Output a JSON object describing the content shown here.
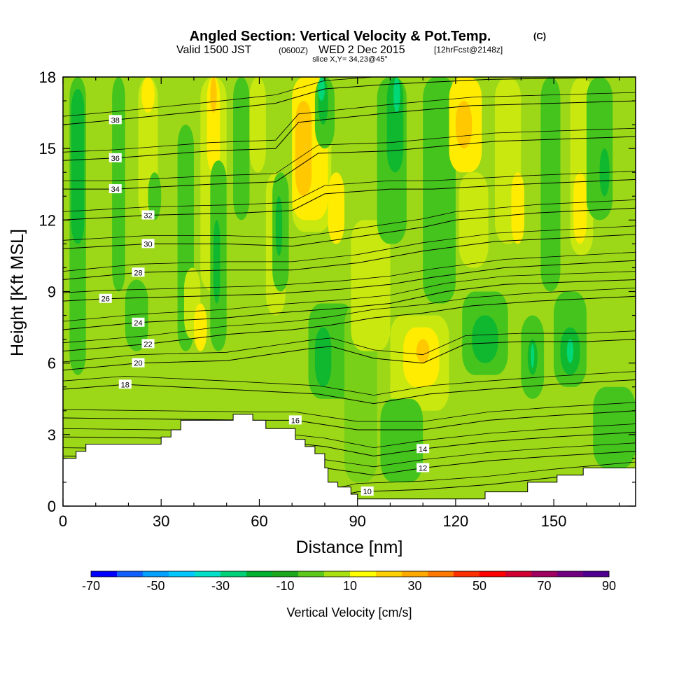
{
  "header": {
    "title": "Angled Section: Vertical Velocity & Pot.Temp.",
    "title_unit": "(C)",
    "valid_line": "Valid 1500 JST",
    "utc_time": "(0600Z)",
    "date": "WED 2 Dec 2015",
    "forecast": "[12hrFcst@2148z]",
    "slice": "slice X,Y= 34,23@45°"
  },
  "chart_data": {
    "type": "heatmap",
    "xlabel": "Distance [nm]",
    "ylabel": "Height [Kft MSL]",
    "xlim": [
      0,
      175
    ],
    "ylim": [
      0,
      18
    ],
    "x_ticks": [
      0,
      30,
      60,
      90,
      120,
      150
    ],
    "y_ticks": [
      0,
      3,
      6,
      9,
      12,
      15,
      18
    ],
    "terrain": [
      [
        0,
        2
      ],
      [
        4,
        2
      ],
      [
        4,
        2.3
      ],
      [
        7,
        2.3
      ],
      [
        7,
        2.6
      ],
      [
        30,
        2.6
      ],
      [
        30,
        2.9
      ],
      [
        33,
        2.9
      ],
      [
        33,
        3.2
      ],
      [
        36,
        3.2
      ],
      [
        36,
        3.6
      ],
      [
        52,
        3.6
      ],
      [
        52,
        3.85
      ],
      [
        58,
        3.85
      ],
      [
        58,
        3.6
      ],
      [
        62,
        3.6
      ],
      [
        62,
        3.25
      ],
      [
        71,
        3.25
      ],
      [
        71,
        2.8
      ],
      [
        74,
        2.8
      ],
      [
        74,
        2.5
      ],
      [
        77,
        2.5
      ],
      [
        77,
        2.2
      ],
      [
        80,
        2.2
      ],
      [
        80,
        1.6
      ],
      [
        81,
        1.6
      ],
      [
        81,
        1.0
      ],
      [
        84,
        1.0
      ],
      [
        84,
        0.8
      ],
      [
        88,
        0.8
      ],
      [
        88,
        0.5
      ],
      [
        90,
        0.5
      ],
      [
        90,
        0.3
      ],
      [
        129,
        0.3
      ],
      [
        129,
        0.6
      ],
      [
        142,
        0.6
      ],
      [
        142,
        1.0
      ],
      [
        151,
        1.0
      ],
      [
        151,
        1.3
      ],
      [
        159,
        1.3
      ],
      [
        159,
        1.6
      ],
      [
        175,
        1.6
      ]
    ],
    "velocity_cells": [
      {
        "x0": 2,
        "x1": 7,
        "y0": 5.5,
        "y1": 18,
        "w": -10
      },
      {
        "x0": 2.5,
        "x1": 6.5,
        "y0": 11,
        "y1": 17.5,
        "w": -20
      },
      {
        "x0": 15,
        "x1": 19,
        "y0": 9,
        "y1": 18,
        "w": -10
      },
      {
        "x0": 19,
        "x1": 26,
        "y0": 6.5,
        "y1": 9.5,
        "w": -10
      },
      {
        "x0": 23,
        "x1": 29,
        "y0": 12,
        "y1": 18,
        "w": 10
      },
      {
        "x0": 24,
        "x1": 28,
        "y0": 16.5,
        "y1": 18,
        "w": 20
      },
      {
        "x0": 26,
        "x1": 30,
        "y0": 12,
        "y1": 14,
        "w": -10
      },
      {
        "x0": 35,
        "x1": 40,
        "y0": 6.5,
        "y1": 16,
        "w": -10
      },
      {
        "x0": 37,
        "x1": 42,
        "y0": 7,
        "y1": 10,
        "w": 10
      },
      {
        "x0": 40,
        "x1": 44,
        "y0": 6.5,
        "y1": 8.5,
        "w": 20
      },
      {
        "x0": 42,
        "x1": 50,
        "y0": 9,
        "y1": 18,
        "w": 10
      },
      {
        "x0": 44,
        "x1": 48,
        "y0": 14,
        "y1": 18,
        "w": 20
      },
      {
        "x0": 45,
        "x1": 47,
        "y0": 16.5,
        "y1": 18,
        "w": 30
      },
      {
        "x0": 45,
        "x1": 50,
        "y0": 6.5,
        "y1": 14.5,
        "w": -10
      },
      {
        "x0": 46,
        "x1": 48,
        "y0": 8.5,
        "y1": 12,
        "w": -20
      },
      {
        "x0": 52,
        "x1": 57,
        "y0": 12,
        "y1": 18,
        "w": -10
      },
      {
        "x0": 57,
        "x1": 62,
        "y0": 14,
        "y1": 18,
        "w": 10
      },
      {
        "x0": 62,
        "x1": 68,
        "y0": 8,
        "y1": 14,
        "w": 10
      },
      {
        "x0": 64,
        "x1": 69,
        "y0": 9,
        "y1": 14,
        "w": -10
      },
      {
        "x0": 65,
        "x1": 67,
        "y0": 10.5,
        "y1": 13,
        "w": -20
      },
      {
        "x0": 70,
        "x1": 82,
        "y0": 11.5,
        "y1": 18,
        "w": 10
      },
      {
        "x0": 70,
        "x1": 81,
        "y0": 12,
        "y1": 18,
        "w": 20
      },
      {
        "x0": 71,
        "x1": 76,
        "y0": 13,
        "y1": 17,
        "w": 30
      },
      {
        "x0": 77,
        "x1": 83,
        "y0": 15,
        "y1": 18,
        "w": -10
      },
      {
        "x0": 78,
        "x1": 81,
        "y0": 16,
        "y1": 18,
        "w": -20
      },
      {
        "x0": 78,
        "x1": 80,
        "y0": 17,
        "y1": 18,
        "w": -30
      },
      {
        "x0": 81,
        "x1": 86,
        "y0": 11,
        "y1": 14,
        "w": 20
      },
      {
        "x0": 75,
        "x1": 89,
        "y0": 4.5,
        "y1": 8.5,
        "w": -10
      },
      {
        "x0": 77,
        "x1": 82,
        "y0": 5,
        "y1": 7.5,
        "w": -20
      },
      {
        "x0": 86,
        "x1": 96,
        "y0": 1,
        "y1": 8.5,
        "w": 0
      },
      {
        "x0": 88,
        "x1": 100,
        "y0": 6.5,
        "y1": 12,
        "w": 10
      },
      {
        "x0": 96,
        "x1": 105,
        "y0": 11,
        "y1": 18,
        "w": -10
      },
      {
        "x0": 99,
        "x1": 104,
        "y0": 14,
        "y1": 18,
        "w": -20
      },
      {
        "x0": 101,
        "x1": 103,
        "y0": 16.5,
        "y1": 18,
        "w": -30
      },
      {
        "x0": 100,
        "x1": 118,
        "y0": 4,
        "y1": 8,
        "w": 10
      },
      {
        "x0": 104,
        "x1": 115,
        "y0": 5,
        "y1": 7.5,
        "w": 20
      },
      {
        "x0": 108,
        "x1": 112,
        "y0": 6,
        "y1": 7,
        "w": 30
      },
      {
        "x0": 97,
        "x1": 110,
        "y0": 1,
        "y1": 4.5,
        "w": -10
      },
      {
        "x0": 110,
        "x1": 120,
        "y0": 8.5,
        "y1": 18,
        "w": -10
      },
      {
        "x0": 118,
        "x1": 128,
        "y0": 14,
        "y1": 18,
        "w": 20
      },
      {
        "x0": 120,
        "x1": 125,
        "y0": 15,
        "y1": 17,
        "w": 30
      },
      {
        "x0": 121,
        "x1": 130,
        "y0": 10,
        "y1": 14,
        "w": 10
      },
      {
        "x0": 122,
        "x1": 136,
        "y0": 5.5,
        "y1": 9,
        "w": -10
      },
      {
        "x0": 125,
        "x1": 133,
        "y0": 6,
        "y1": 8,
        "w": -20
      },
      {
        "x0": 132,
        "x1": 140,
        "y0": 11,
        "y1": 18,
        "w": 10
      },
      {
        "x0": 137,
        "x1": 141,
        "y0": 11,
        "y1": 14,
        "w": 20
      },
      {
        "x0": 140,
        "x1": 147,
        "y0": 4.5,
        "y1": 8,
        "w": -10
      },
      {
        "x0": 142,
        "x1": 145,
        "y0": 5.5,
        "y1": 7,
        "w": -20
      },
      {
        "x0": 143,
        "x1": 144,
        "y0": 5.8,
        "y1": 6.8,
        "w": -30
      },
      {
        "x0": 146,
        "x1": 152,
        "y0": 9,
        "y1": 18,
        "w": -10
      },
      {
        "x0": 150,
        "x1": 160,
        "y0": 5,
        "y1": 9,
        "w": -10
      },
      {
        "x0": 152,
        "x1": 158,
        "y0": 5.5,
        "y1": 7.5,
        "w": -20
      },
      {
        "x0": 154,
        "x1": 156,
        "y0": 6,
        "y1": 7,
        "w": -30
      },
      {
        "x0": 155,
        "x1": 162,
        "y0": 10.5,
        "y1": 18,
        "w": 10
      },
      {
        "x0": 156,
        "x1": 160,
        "y0": 11,
        "y1": 14,
        "w": 20
      },
      {
        "x0": 160,
        "x1": 168,
        "y0": 12,
        "y1": 18,
        "w": -10
      },
      {
        "x0": 164,
        "x1": 167,
        "y0": 13,
        "y1": 15,
        "w": -20
      },
      {
        "x0": 162,
        "x1": 175,
        "y0": 1.6,
        "y1": 5,
        "w": -10
      }
    ],
    "theta_levels": [
      {
        "theta": 10,
        "anchor": [
          0,
          1.5
        ],
        "label_at": 93,
        "pts": [
          [
            0,
            0.3
          ],
          [
            50,
            0.4
          ],
          [
            80,
            0.3
          ],
          [
            90,
            0.6
          ],
          [
            110,
            0.7
          ],
          [
            130,
            0.9
          ],
          [
            150,
            1.2
          ],
          [
            175,
            1.5
          ]
        ]
      },
      {
        "theta": 12,
        "anchor": [
          0,
          2.0
        ],
        "label_at": 110,
        "pts": [
          [
            0,
            2.1
          ],
          [
            60,
            2.0
          ],
          [
            80,
            1.6
          ],
          [
            95,
            1.3
          ],
          [
            110,
            1.6
          ],
          [
            130,
            1.9
          ],
          [
            150,
            2.1
          ],
          [
            175,
            2.3
          ]
        ]
      },
      {
        "theta": 14,
        "anchor": [
          0,
          2.9
        ],
        "label_at": 110,
        "pts": [
          [
            0,
            2.9
          ],
          [
            60,
            2.8
          ],
          [
            80,
            2.5
          ],
          [
            95,
            2.1
          ],
          [
            110,
            2.4
          ],
          [
            130,
            2.7
          ],
          [
            150,
            2.9
          ],
          [
            175,
            3.1
          ]
        ]
      },
      {
        "theta": 16,
        "anchor": [
          0,
          3.6
        ],
        "label_at": 71,
        "pts": [
          [
            0,
            3.7
          ],
          [
            60,
            3.6
          ],
          [
            71,
            3.6
          ],
          [
            90,
            3.2
          ],
          [
            110,
            3.2
          ],
          [
            130,
            3.6
          ],
          [
            150,
            3.8
          ],
          [
            175,
            4.0
          ]
        ]
      },
      {
        "theta": 18,
        "anchor": [
          0,
          5.1
        ],
        "label_at": 19,
        "pts": [
          [
            0,
            4.9
          ],
          [
            19,
            5.1
          ],
          [
            50,
            4.9
          ],
          [
            78,
            4.7
          ],
          [
            95,
            4.3
          ],
          [
            112,
            4.7
          ],
          [
            130,
            4.9
          ],
          [
            150,
            5.1
          ],
          [
            175,
            5.3
          ]
        ]
      },
      {
        "theta": 20,
        "anchor": [
          0,
          5.9
        ],
        "label_at": 23,
        "pts": [
          [
            0,
            5.7
          ],
          [
            23,
            6.0
          ],
          [
            50,
            6.1
          ],
          [
            75,
            6.6
          ],
          [
            82,
            6.7
          ],
          [
            95,
            6.2
          ],
          [
            110,
            6.0
          ],
          [
            123,
            6.8
          ],
          [
            140,
            6.9
          ],
          [
            160,
            6.9
          ],
          [
            175,
            7.0
          ]
        ]
      },
      {
        "theta": 22,
        "anchor": [
          0,
          6.7
        ],
        "label_at": 26,
        "pts": [
          [
            0,
            6.5
          ],
          [
            26,
            6.8
          ],
          [
            50,
            7.2
          ],
          [
            70,
            7.4
          ],
          [
            82,
            7.6
          ],
          [
            95,
            7.9
          ],
          [
            110,
            8.1
          ],
          [
            125,
            8.4
          ],
          [
            145,
            8.6
          ],
          [
            175,
            8.8
          ]
        ]
      },
      {
        "theta": 24,
        "anchor": [
          0,
          7.6
        ],
        "label_at": 23,
        "pts": [
          [
            0,
            7.4
          ],
          [
            23,
            7.7
          ],
          [
            50,
            7.9
          ],
          [
            65,
            8.1
          ],
          [
            85,
            8.3
          ],
          [
            100,
            8.5
          ],
          [
            117,
            9.0
          ],
          [
            135,
            9.3
          ],
          [
            175,
            9.5
          ]
        ]
      },
      {
        "theta": 26,
        "anchor": [
          0,
          8.7
        ],
        "label_at": 13,
        "pts": [
          [
            0,
            8.6
          ],
          [
            13,
            8.7
          ],
          [
            40,
            8.8
          ],
          [
            64,
            8.9
          ],
          [
            85,
            9.1
          ],
          [
            100,
            9.3
          ],
          [
            113,
            9.6
          ],
          [
            135,
            10.0
          ],
          [
            175,
            10.3
          ]
        ]
      },
      {
        "theta": 28,
        "anchor": [
          0,
          9.7
        ],
        "label_at": 23,
        "pts": [
          [
            0,
            9.5
          ],
          [
            23,
            9.8
          ],
          [
            50,
            9.9
          ],
          [
            70,
            9.9
          ],
          [
            90,
            10.2
          ],
          [
            110,
            10.7
          ],
          [
            132,
            11.1
          ],
          [
            175,
            11.4
          ]
        ]
      },
      {
        "theta": 30,
        "anchor": [
          0,
          10.8
        ],
        "label_at": 26,
        "pts": [
          [
            0,
            10.8
          ],
          [
            26,
            11.0
          ],
          [
            50,
            11.0
          ],
          [
            70,
            10.9
          ],
          [
            90,
            11.3
          ],
          [
            110,
            11.7
          ],
          [
            120,
            12.0
          ],
          [
            145,
            12.3
          ],
          [
            175,
            12.5
          ]
        ]
      },
      {
        "theta": 32,
        "anchor": [
          0,
          12.0
        ],
        "label_at": 26,
        "pts": [
          [
            0,
            12.0
          ],
          [
            26,
            12.2
          ],
          [
            55,
            12.3
          ],
          [
            70,
            12.4
          ],
          [
            80,
            13.1
          ],
          [
            100,
            13.3
          ],
          [
            113,
            13.3
          ],
          [
            140,
            13.5
          ],
          [
            175,
            13.7
          ]
        ]
      },
      {
        "theta": 34,
        "anchor": [
          0,
          13.3
        ],
        "label_at": 16,
        "pts": [
          [
            0,
            13.3
          ],
          [
            16,
            13.3
          ],
          [
            45,
            13.5
          ],
          [
            65,
            13.6
          ],
          [
            78,
            14.8
          ],
          [
            100,
            14.9
          ],
          [
            132,
            15.3
          ],
          [
            175,
            15.5
          ]
        ]
      },
      {
        "theta": 36,
        "anchor": [
          0,
          14.6
        ],
        "label_at": 16,
        "pts": [
          [
            0,
            14.5
          ],
          [
            16,
            14.6
          ],
          [
            45,
            14.9
          ],
          [
            65,
            15.0
          ],
          [
            72,
            16.1
          ],
          [
            100,
            16.5
          ],
          [
            125,
            16.8
          ],
          [
            175,
            17.0
          ]
        ]
      },
      {
        "theta": 38,
        "anchor": [
          0,
          16.0
        ],
        "label_at": 16,
        "pts": [
          [
            0,
            16.0
          ],
          [
            16,
            16.2
          ],
          [
            45,
            16.6
          ],
          [
            65,
            16.9
          ],
          [
            80,
            17.5
          ],
          [
            100,
            17.7
          ],
          [
            130,
            17.9
          ],
          [
            175,
            18.0
          ]
        ]
      }
    ],
    "colorbar": {
      "label": "Vertical Velocity [cm/s]",
      "ticks": [
        "-70",
        "-50",
        "-30",
        "-10",
        "10",
        "30",
        "50",
        "70",
        "90"
      ],
      "colors": [
        "#0000ff",
        "#1060ff",
        "#00a0ff",
        "#00c8ff",
        "#00e0c8",
        "#00d078",
        "#00b030",
        "#1ca81c",
        "#5cc81c",
        "#a8e010",
        "#ffff00",
        "#ffd000",
        "#ffa800",
        "#ff7800",
        "#ff3000",
        "#ff0000",
        "#d00030",
        "#a00060",
        "#700080",
        "#500090"
      ]
    }
  }
}
